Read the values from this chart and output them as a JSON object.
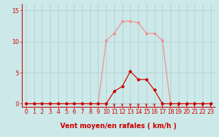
{
  "x_hours": [
    0,
    1,
    2,
    3,
    4,
    5,
    6,
    7,
    8,
    9,
    10,
    11,
    12,
    13,
    14,
    15,
    16,
    17,
    18,
    19,
    20,
    21,
    22,
    23
  ],
  "rafales": [
    0,
    0,
    0,
    0,
    0,
    0,
    0,
    0,
    0,
    0,
    10.2,
    11.3,
    13.2,
    13.3,
    13.0,
    11.3,
    11.3,
    10.2,
    0,
    0,
    0,
    0,
    0,
    0
  ],
  "moyen": [
    0,
    0,
    0,
    0,
    0,
    0,
    0,
    0,
    0,
    0,
    0,
    2.0,
    2.8,
    5.2,
    3.9,
    3.9,
    2.2,
    0,
    0,
    0,
    0,
    0,
    0,
    0
  ],
  "bg_color": "#cce8e8",
  "grid_color": "#aacccc",
  "line_color_rafales": "#f09090",
  "line_color_moyen": "#cc0000",
  "xlabel": "Vent moyen/en rafales ( km/h )",
  "xlim": [
    -0.5,
    23.5
  ],
  "ylim": [
    -0.5,
    16
  ],
  "yticks": [
    0,
    5,
    10,
    15
  ],
  "xticks": [
    0,
    1,
    2,
    3,
    4,
    5,
    6,
    7,
    8,
    9,
    10,
    11,
    12,
    13,
    14,
    15,
    16,
    17,
    18,
    19,
    20,
    21,
    22,
    23
  ],
  "tick_color": "#cc0000",
  "label_color": "#cc0000",
  "font_size_label": 7,
  "font_size_tick": 6,
  "arrow_hours": [
    10,
    11,
    12,
    13,
    14,
    15,
    16,
    17,
    18,
    19,
    20,
    21,
    22,
    23
  ],
  "fig_bg": "#cce8e8"
}
